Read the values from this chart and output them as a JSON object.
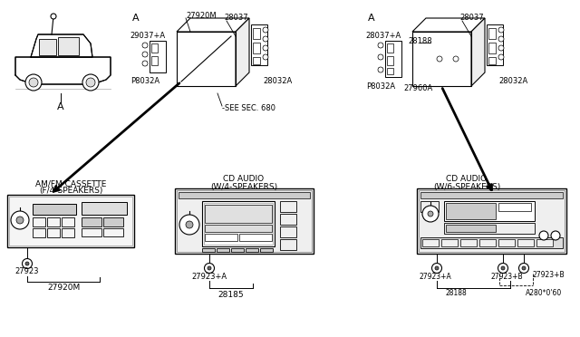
{
  "bg_color": "#ffffff",
  "lc": "#000000",
  "gray": "#888888",
  "lgray": "#cccccc",
  "parts": {
    "27920M": "27920M",
    "28037": "28037",
    "29037pA": "29037+A",
    "28032A": "28032A",
    "P8032A": "P8032A",
    "28188": "28188",
    "27960A": "27960A",
    "27923": "27923",
    "27923pA": "27923+A",
    "27923pB": "27923+B",
    "28185": "28185",
    "28037pA": "28037+A",
    "A280": "A280*0'60",
    "28188b": "28188"
  },
  "labels": {
    "am_fm_1": "AM/FM CASSETTE",
    "am_fm_2": "(F/4-SPEAKERS)",
    "cd4_1": "CD AUDIO",
    "cd4_2": "(W/4-SPEAKERS)",
    "cd6_1": "CD AUDIO",
    "cd6_2": "(W/6-SPEAKERS)",
    "see_sec": "-SEE SEC. 680",
    "A": "A"
  }
}
